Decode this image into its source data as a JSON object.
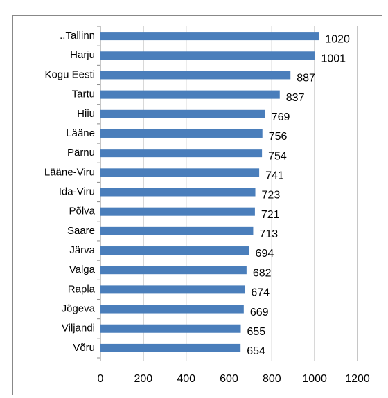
{
  "chart_data": {
    "type": "bar",
    "orientation": "horizontal",
    "categories": [
      "..Tallinn",
      "Harju",
      "Kogu Eesti",
      "Tartu",
      "Hiiu",
      "Lääne",
      "Pärnu",
      "Lääne-Viru",
      "Ida-Viru",
      "Põlva",
      "Saare",
      "Järva",
      "Valga",
      "Rapla",
      "Jõgeva",
      "Viljandi",
      "Võru"
    ],
    "values": [
      1020,
      1001,
      887,
      837,
      769,
      756,
      754,
      741,
      723,
      721,
      713,
      694,
      682,
      674,
      669,
      655,
      654
    ],
    "color": "#4a7ebb",
    "xlim": [
      0,
      1200
    ],
    "xticks": [
      0,
      200,
      400,
      600,
      800,
      1000,
      1200
    ],
    "grid": true
  }
}
